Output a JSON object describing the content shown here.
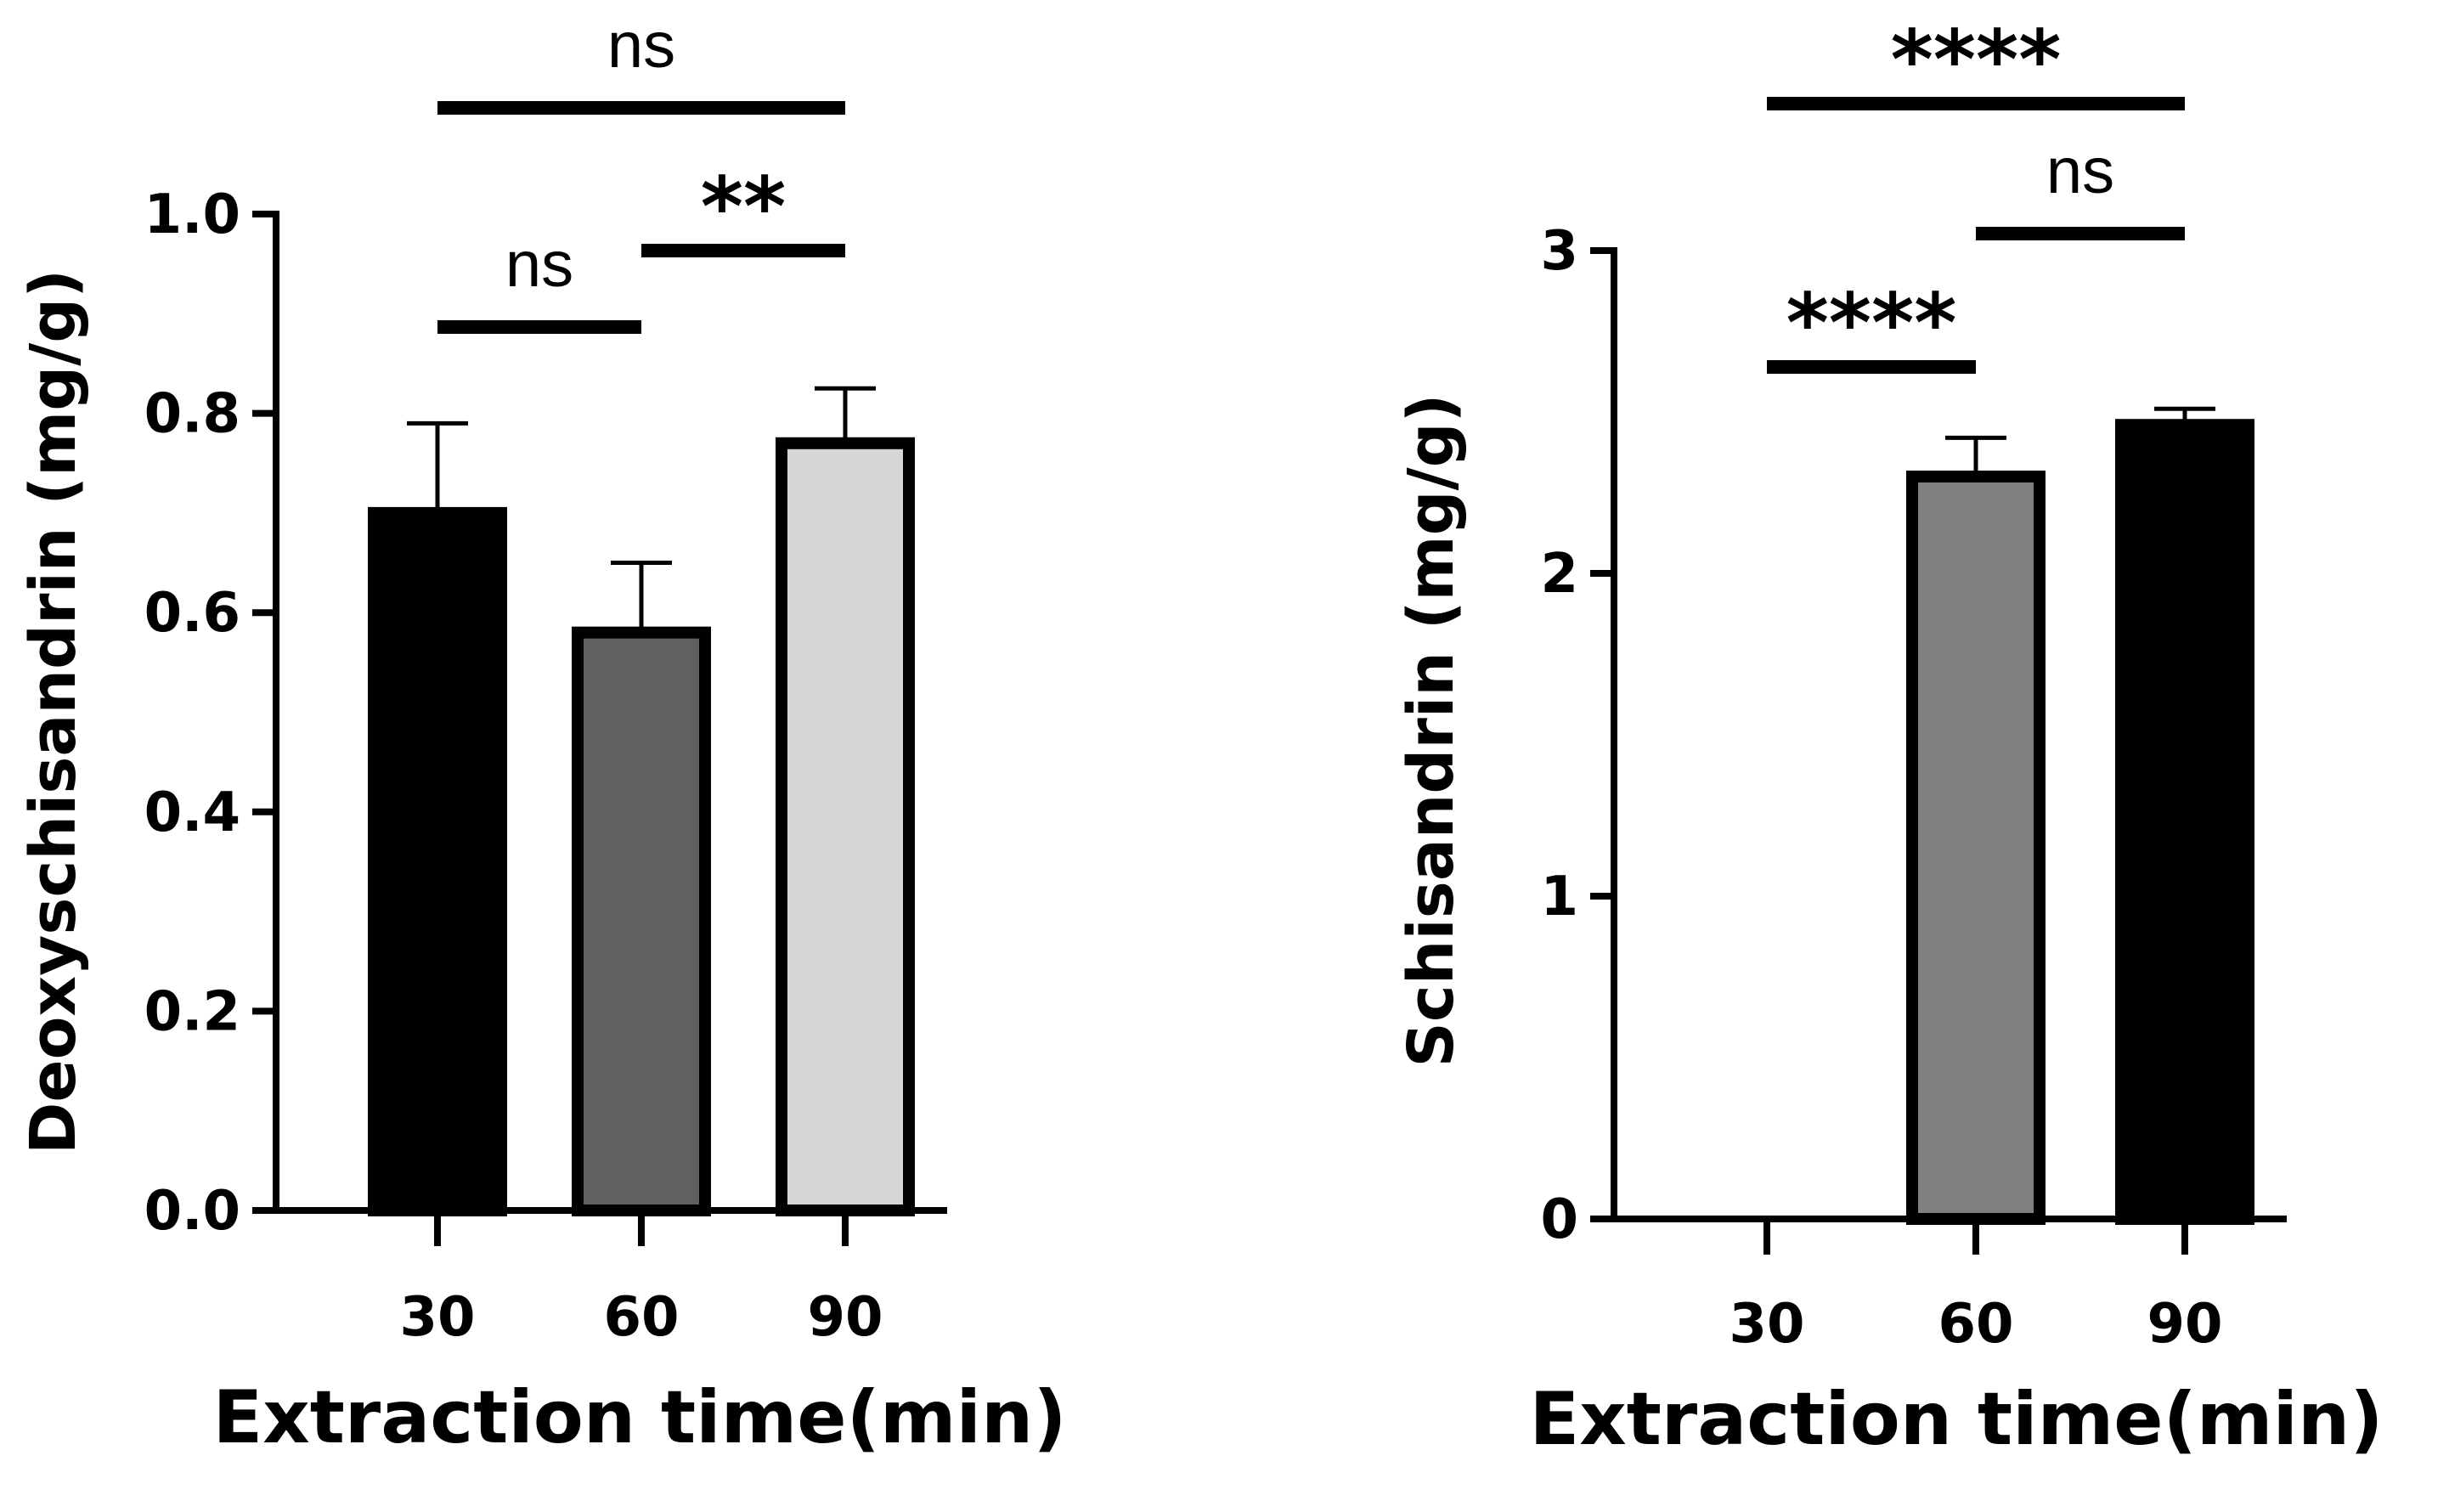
{
  "chart_data": [
    {
      "type": "bar",
      "title": "",
      "xlabel": "Extraction time(min)",
      "ylabel": "Deoxyschisandrin (mg/g)",
      "categories": [
        "30",
        "60",
        "90"
      ],
      "values": [
        0.7,
        0.58,
        0.77
      ],
      "errors": [
        0.09,
        0.07,
        0.055
      ],
      "colors": [
        "#000000",
        "#606060",
        "#d6d6d6"
      ],
      "ylim": [
        0,
        1.0
      ],
      "yticks": [
        "0.0",
        "0.2",
        "0.4",
        "0.6",
        "0.8",
        "1.0"
      ],
      "grid": false,
      "comparisons": [
        {
          "from": 0,
          "to": 1,
          "label": "ns"
        },
        {
          "from": 1,
          "to": 2,
          "label": "**"
        },
        {
          "from": 0,
          "to": 2,
          "label": "ns"
        }
      ]
    },
    {
      "type": "bar",
      "title": "",
      "xlabel": "Extraction time(min)",
      "ylabel": "Schisandrin (mg/g)",
      "categories": [
        "30",
        "60",
        "90"
      ],
      "values": [
        0,
        2.3,
        2.46
      ],
      "errors": [
        0,
        0.12,
        0.05
      ],
      "colors": [
        "#000000",
        "#808080",
        "#000000"
      ],
      "ylim": [
        0,
        3
      ],
      "yticks": [
        "0",
        "1",
        "2",
        "3"
      ],
      "grid": false,
      "comparisons": [
        {
          "from": 0,
          "to": 1,
          "label": "****"
        },
        {
          "from": 1,
          "to": 2,
          "label": "ns"
        },
        {
          "from": 0,
          "to": 2,
          "label": "****"
        }
      ]
    }
  ]
}
